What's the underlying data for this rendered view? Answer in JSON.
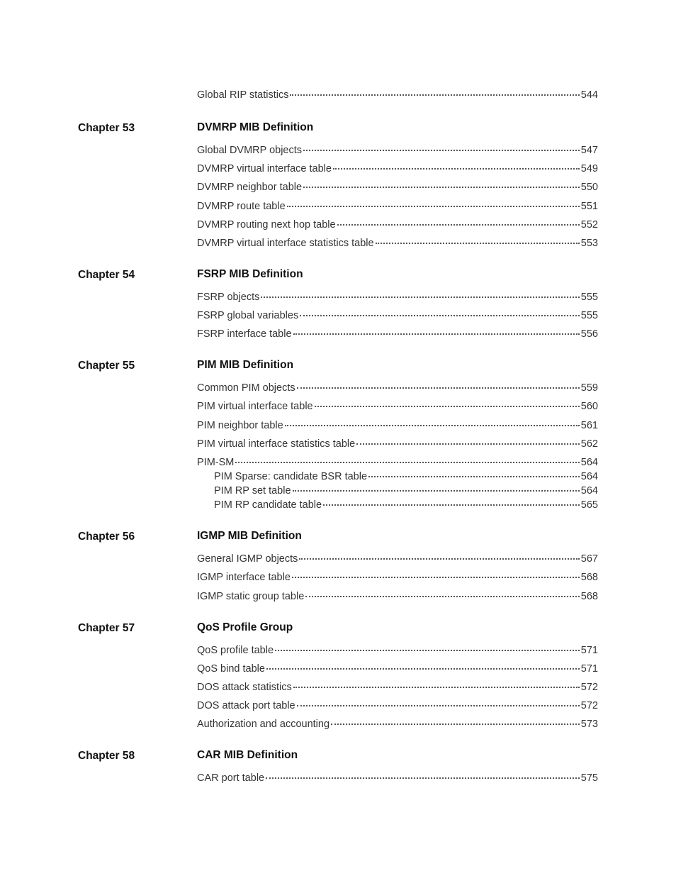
{
  "orphan": {
    "text": "Global RIP statistics",
    "page": "544"
  },
  "chapters": [
    {
      "label": "Chapter 53",
      "title": "DVMRP MIB Definition",
      "entries": [
        {
          "text": "Global DVMRP objects",
          "page": "547"
        },
        {
          "text": "DVMRP virtual interface table",
          "page": "549"
        },
        {
          "text": "DVMRP neighbor table",
          "page": "550"
        },
        {
          "text": "DVMRP route table",
          "page": "551"
        },
        {
          "text": "DVMRP routing next hop table",
          "page": "552"
        },
        {
          "text": "DVMRP virtual interface statistics table",
          "page": "553"
        }
      ]
    },
    {
      "label": "Chapter 54",
      "title": "FSRP MIB Definition",
      "entries": [
        {
          "text": "FSRP objects",
          "page": "555"
        },
        {
          "text": "FSRP global variables",
          "page": "555"
        },
        {
          "text": "FSRP interface table",
          "page": "556"
        }
      ]
    },
    {
      "label": "Chapter 55",
      "title": "PIM MIB Definition",
      "entries": [
        {
          "text": "Common PIM objects",
          "page": "559"
        },
        {
          "text": "PIM virtual interface table",
          "page": "560"
        },
        {
          "text": "PIM neighbor table",
          "page": "561"
        },
        {
          "text": "PIM virtual interface statistics table",
          "page": "562"
        },
        {
          "text": "PIM-SM",
          "page": "564",
          "subs": [
            {
              "text": "PIM Sparse: candidate BSR table",
              "page": "564"
            },
            {
              "text": "PIM RP set table",
              "page": "564"
            },
            {
              "text": "PIM RP candidate table",
              "page": "565"
            }
          ]
        }
      ]
    },
    {
      "label": "Chapter 56",
      "title": "IGMP MIB Definition",
      "entries": [
        {
          "text": "General IGMP objects",
          "page": "567"
        },
        {
          "text": "IGMP interface table",
          "page": "568"
        },
        {
          "text": "IGMP static group table",
          "page": "568"
        }
      ]
    },
    {
      "label": "Chapter 57",
      "title": "QoS Profile Group",
      "entries": [
        {
          "text": "QoS profile table",
          "page": "571"
        },
        {
          "text": "QoS bind table",
          "page": "571"
        },
        {
          "text": "DOS attack statistics",
          "page": "572"
        },
        {
          "text": "DOS attack port table",
          "page": "572"
        },
        {
          "text": "Authorization and accounting",
          "page": "573"
        }
      ]
    },
    {
      "label": "Chapter 58",
      "title": "CAR MIB Definition",
      "entries": [
        {
          "text": "CAR port table",
          "page": "575"
        }
      ]
    }
  ]
}
